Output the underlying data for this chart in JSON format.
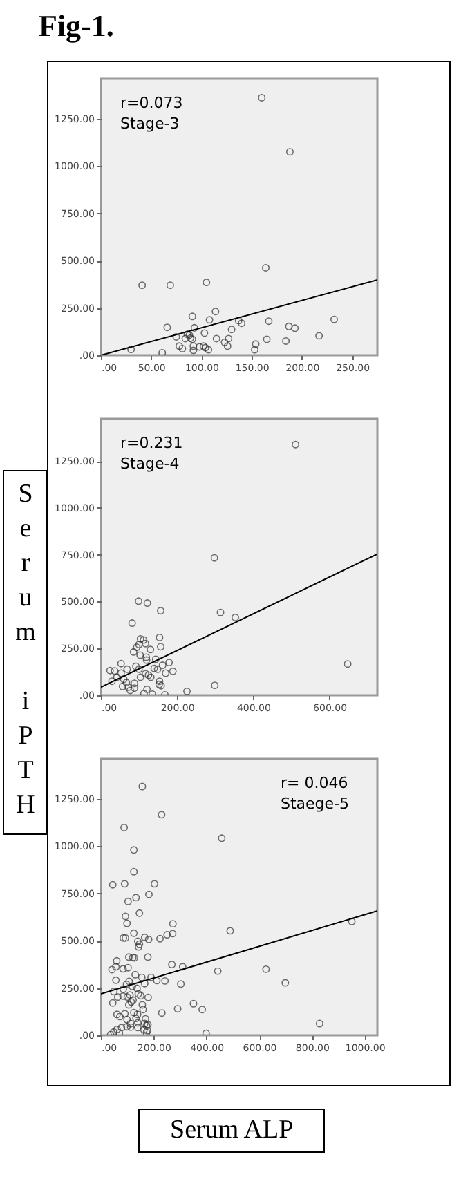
{
  "chart_data": [
    {
      "type": "scatter",
      "title": "Fig-1.",
      "grid": false,
      "annotations": [
        "r=0.073",
        "Stage-3"
      ],
      "xlim": [
        0,
        275
      ],
      "ylim": [
        0,
        1460
      ],
      "xticks": [
        {
          "value": 0,
          "label": ".00"
        },
        {
          "value": 50,
          "label": "50.00"
        },
        {
          "value": 100,
          "label": "100.00"
        },
        {
          "value": 150,
          "label": "150.00"
        },
        {
          "value": 200,
          "label": "200.00"
        },
        {
          "value": 250,
          "label": "250.00"
        }
      ],
      "yticks": [
        {
          "value": 0,
          "label": ".00"
        },
        {
          "value": 250,
          "label": "250.00"
        },
        {
          "value": 500,
          "label": "500.00"
        },
        {
          "value": 750,
          "label": "750.00"
        },
        {
          "value": 1000,
          "label": "1000.00"
        },
        {
          "value": 1250,
          "label": "1250.00"
        }
      ],
      "series": [
        {
          "marker": "circle",
          "color": "#333333",
          "x": [
            160,
            188,
            164,
            41,
            69,
            105,
            114,
            91,
            66,
            108,
            137,
            140,
            167,
            232,
            187,
            193,
            217,
            184,
            165,
            130,
            93,
            103,
            115,
            127,
            123,
            126,
            154,
            153,
            75,
            84,
            88,
            89,
            91,
            78,
            81,
            92,
            92,
            98,
            102,
            104,
            107,
            30,
            61,
            86
          ],
          "values": [
            1360,
            1074,
            462,
            370,
            370,
            385,
            231,
            205,
            147,
            187,
            183,
            169,
            180,
            189,
            152,
            143,
            103,
            75,
            84,
            136,
            145,
            117,
            88,
            88,
            68,
            48,
            59,
            29,
            97,
            88,
            106,
            90,
            84,
            48,
            35,
            48,
            26,
            44,
            48,
            40,
            29,
            31,
            13,
            110
          ]
        },
        {
          "type": "line",
          "color": "#000000",
          "x": [
            0,
            275
          ],
          "values": [
            0,
            398
          ]
        }
      ]
    },
    {
      "type": "scatter",
      "ylabel": "Serum iPTH",
      "grid": false,
      "annotations": [
        "r=0.231",
        "Stage-4"
      ],
      "xlim": [
        0,
        726
      ],
      "ylim": [
        0,
        1475
      ],
      "xticks": [
        {
          "value": 0,
          "label": ".00"
        },
        {
          "value": 200,
          "label": "200.00"
        },
        {
          "value": 400,
          "label": "400.00"
        },
        {
          "value": 600,
          "label": "600.00"
        }
      ],
      "yticks": [
        {
          "value": 0,
          "label": ".00"
        },
        {
          "value": 250,
          "label": "250.00"
        },
        {
          "value": 500,
          "label": "500.00"
        },
        {
          "value": 750,
          "label": "750.00"
        },
        {
          "value": 1000,
          "label": "1000.00"
        },
        {
          "value": 1250,
          "label": "1250.00"
        }
      ],
      "series": [
        {
          "marker": "circle",
          "color": "#333333",
          "x": [
            511,
            298,
            99,
            122,
            157,
            314,
            353,
            82,
            154,
            104,
            112,
            157,
            117,
            94,
            100,
            130,
            86,
            648,
            299,
            226,
            103,
            119,
            144,
            179,
            120,
            53,
            162,
            189,
            170,
            149,
            140,
            100,
            92,
            69,
            24,
            36,
            53,
            42,
            60,
            29,
            67,
            88,
            104,
            117,
            125,
            131,
            154,
            153,
            158,
            72,
            88,
            121,
            113,
            135,
            168,
            77,
            57
          ],
          "values": [
            1338,
            733,
            502,
            492,
            451,
            442,
            415,
            385,
            308,
            301,
            295,
            259,
            276,
            256,
            271,
            244,
            231,
            167,
            53,
            21,
            214,
            203,
            192,
            175,
            188,
            169,
            160,
            128,
            118,
            139,
            143,
            139,
            154,
            139,
            132,
            130,
            118,
            96,
            85,
            75,
            68,
            64,
            96,
            115,
            107,
            96,
            75,
            58,
            51,
            43,
            38,
            32,
            9,
            6,
            2,
            26,
            47
          ]
        },
        {
          "type": "line",
          "color": "#000000",
          "x": [
            0,
            726
          ],
          "values": [
            43,
            754
          ]
        }
      ]
    },
    {
      "type": "scatter",
      "xlabel": "Serum ALP",
      "grid": false,
      "annotations": [
        "r= 0.046",
        "Staege-5"
      ],
      "xlim": [
        0,
        1048
      ],
      "ylim": [
        0,
        1460
      ],
      "xticks": [
        {
          "value": 0,
          "label": ".00"
        },
        {
          "value": 200,
          "label": "200.00"
        },
        {
          "value": 400,
          "label": "400.00"
        },
        {
          "value": 600,
          "label": "600.00"
        },
        {
          "value": 800,
          "label": "800.00"
        },
        {
          "value": 1000,
          "label": "1000.00"
        }
      ],
      "yticks": [
        {
          "value": 0,
          "label": ".00"
        },
        {
          "value": 250,
          "label": "250.00"
        },
        {
          "value": 500,
          "label": "500.00"
        },
        {
          "value": 750,
          "label": "750.00"
        },
        {
          "value": 1000,
          "label": "1000.00"
        },
        {
          "value": 1250,
          "label": "1250.00"
        }
      ],
      "series": [
        {
          "marker": "circle",
          "color": "#333333",
          "x": [
            157,
            230,
            458,
            88,
            125,
            125,
            45,
            90,
            203,
            133,
            103,
            182,
            93,
            146,
            99,
            273,
            57,
            85,
            93,
            125,
            166,
            181,
            140,
            146,
            143,
            224,
            251,
            272,
            490,
            60,
            106,
            121,
            127,
            178,
            269,
            310,
            42,
            84,
            103,
            443,
            626,
            699,
            303,
            243,
            212,
            190,
            155,
            130,
            57,
            49,
            85,
            119,
            137,
            166,
            97,
            107,
            45,
            64,
            84,
            100,
            110,
            142,
            151,
            179,
            106,
            115,
            122,
            157,
            160,
            351,
            384,
            291,
            231,
            61,
            72,
            91,
            99,
            125,
            139,
            133,
            112,
            99,
            113,
            140,
            166,
            169,
            173,
            178,
            140,
            78,
            61,
            49,
            70,
            37,
            173,
            176,
            163,
            399,
            829,
            951
          ],
          "values": [
            1314,
            1165,
            1041,
            1097,
            979,
            864,
            795,
            800,
            800,
            727,
            707,
            744,
            628,
            645,
            591,
            589,
            362,
            514,
            514,
            539,
            517,
            506,
            496,
            481,
            467,
            510,
            531,
            537,
            552,
            393,
            413,
            411,
            409,
            413,
            374,
            362,
            347,
            351,
            357,
            339,
            349,
            277,
            271,
            287,
            289,
            306,
            306,
            320,
            291,
            231,
            244,
            258,
            248,
            273,
            269,
            285,
            171,
            202,
            207,
            202,
            213,
            219,
            209,
            200,
            161,
            176,
            186,
            161,
            136,
            167,
            136,
            140,
            118,
            110,
            99,
            114,
            83,
            120,
            110,
            89,
            62,
            45,
            43,
            66,
            62,
            87,
            52,
            56,
            41,
            41,
            31,
            17,
            12,
            4,
            14,
            25,
            29,
            10,
            62,
            601
          ]
        },
        {
          "type": "line",
          "color": "#000000",
          "x": [
            0,
            1048
          ],
          "values": [
            219,
            657
          ]
        }
      ]
    }
  ]
}
